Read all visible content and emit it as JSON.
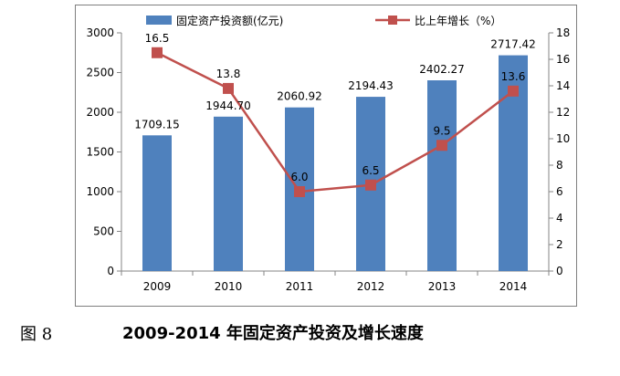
{
  "caption": {
    "number": "图 8",
    "title": "2009-2014 年固定资产投资及增长速度"
  },
  "colors": {
    "bar": "#4f81bd",
    "line": "#c0504d",
    "axis": "#868686",
    "frame": "#7f7f7f"
  },
  "chart_data": {
    "type": "bar+line",
    "title": "",
    "categories": [
      "2009",
      "2010",
      "2011",
      "2012",
      "2013",
      "2014"
    ],
    "series": [
      {
        "name": "固定资产投资额(亿元)",
        "type": "bar",
        "axis": "left",
        "values": [
          1709.15,
          1944.7,
          2060.92,
          2194.43,
          2402.27,
          2717.42
        ],
        "labels": [
          "1709.15",
          "1944.70",
          "2060.92",
          "2194.43",
          "2402.27",
          "2717.42"
        ]
      },
      {
        "name": "比上年增长（%）",
        "type": "line",
        "axis": "right",
        "values": [
          16.5,
          13.8,
          6.0,
          6.5,
          9.5,
          13.6
        ],
        "labels": [
          "16.5",
          "13.8",
          "6.0",
          "6.5",
          "9.5",
          "13.6"
        ]
      }
    ],
    "y_left": {
      "min": 0,
      "max": 3000,
      "ticks": [
        "0",
        "500",
        "1000",
        "1500",
        "2000",
        "2500",
        "3000"
      ]
    },
    "y_right": {
      "min": 0,
      "max": 18,
      "ticks": [
        "0",
        "2",
        "4",
        "6",
        "8",
        "10",
        "12",
        "14",
        "16",
        "18"
      ]
    },
    "legend": {
      "position": "top",
      "entries": [
        "固定资产投资额(亿元)",
        "比上年增长（%）"
      ]
    },
    "grid": false
  }
}
